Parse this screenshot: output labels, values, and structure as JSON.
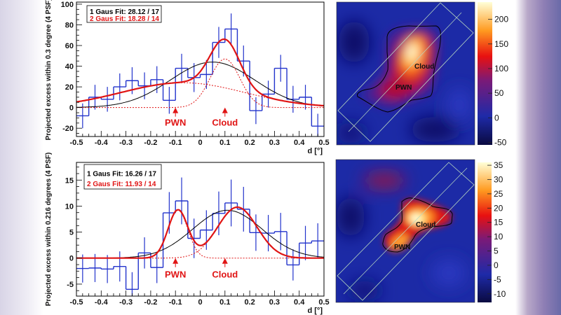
{
  "chart_data": [
    {
      "type": "bar",
      "subtype": "histogram-with-fits",
      "ylabel": "Projected excess within 0.3 degree (4 PSF)",
      "xlabel": "d [°]",
      "xlim": [
        -0.5,
        0.5
      ],
      "ylim": [
        -28,
        102
      ],
      "xticks": [
        -0.5,
        -0.4,
        -0.3,
        -0.2,
        -0.1,
        0,
        0.1,
        0.2,
        0.3,
        0.4,
        0.5
      ],
      "xtick_labels": [
        "-0.5",
        "-0.4",
        "-0.3",
        "-0.2",
        "-0.1",
        "0",
        "0.1",
        "0.2",
        "0.3",
        "0.4",
        "0.5"
      ],
      "yticks": [
        -20,
        0,
        20,
        40,
        60,
        80,
        100
      ],
      "ytick_labels": [
        "-20",
        "0",
        "20",
        "40",
        "60",
        "80",
        "100"
      ],
      "bin_width": 0.05,
      "bin_edges_start": -0.5,
      "values": [
        -8,
        10,
        8,
        20,
        26,
        21,
        27,
        7,
        38,
        29,
        32,
        63,
        76,
        45,
        -3,
        13,
        38,
        8,
        10,
        -18
      ],
      "errors": [
        12,
        12,
        12,
        13,
        13,
        13,
        13,
        13,
        14,
        14,
        14,
        15,
        15,
        15,
        13,
        13,
        13,
        13,
        12,
        12
      ],
      "legend": [
        "1 Gaus Fit: 28.12 / 17",
        "2 Gaus Fit: 18.28 / 14"
      ],
      "fits": {
        "one_gauss": [
          {
            "amplitude": 44,
            "mean": 0.05,
            "sigma": 0.17
          }
        ],
        "two_gauss": [
          {
            "amplitude": 24,
            "mean": -0.07,
            "sigma": 0.25
          },
          {
            "amplitude": 47,
            "mean": 0.1,
            "sigma": 0.06
          }
        ]
      },
      "annotations": [
        {
          "text": "PWN",
          "x": -0.1
        },
        {
          "text": "Cloud",
          "x": 0.1
        }
      ],
      "colors": {
        "histogram": "#2233cc",
        "one_gauss": "#000000",
        "two_gauss": "#e01414"
      }
    },
    {
      "type": "bar",
      "subtype": "histogram-with-fits",
      "ylabel": "Projected excess within 0.216 degrees (4 PSF)",
      "xlabel": "d [°]",
      "xlim": [
        -0.5,
        0.5
      ],
      "ylim": [
        -7.3,
        18.4
      ],
      "xticks": [
        -0.5,
        -0.4,
        -0.3,
        -0.2,
        -0.1,
        0,
        0.1,
        0.2,
        0.3,
        0.4,
        0.5
      ],
      "xtick_labels": [
        "-0.5",
        "-0.4",
        "-0.3",
        "-0.2",
        "-0.1",
        "0",
        "0.1",
        "0.2",
        "0.3",
        "0.4",
        "0.5"
      ],
      "yticks": [
        -5,
        0,
        5,
        10,
        15
      ],
      "ytick_labels": [
        "-5",
        "0",
        "5",
        "10",
        "15"
      ],
      "bin_width": 0.05,
      "bin_edges_start": -0.5,
      "values": [
        -2,
        -1.9,
        -2.1,
        -1.6,
        -6,
        1,
        -1.8,
        8.7,
        11,
        3.8,
        5.4,
        8.6,
        10.6,
        9.4,
        4.9,
        4.8,
        5.1,
        -1.3,
        2.9,
        3.3
      ],
      "errors": [
        2.7,
        2.7,
        2.7,
        2.9,
        3.3,
        3,
        3,
        4,
        4.5,
        3.8,
        3.8,
        4.2,
        4.5,
        4.3,
        3.5,
        3.5,
        3.6,
        3,
        3.3,
        3.4
      ],
      "legend": [
        "1 Gaus Fit: 16.26 / 17",
        "2 Gaus Fit: 11.93 / 14"
      ],
      "fits": {
        "one_gauss": [
          {
            "amplitude": 9.2,
            "mean": 0.11,
            "sigma": 0.14
          }
        ],
        "two_gauss": [
          {
            "amplitude": 9.2,
            "mean": -0.09,
            "sigma": 0.04
          },
          {
            "amplitude": 9.8,
            "mean": 0.15,
            "sigma": 0.08
          }
        ]
      },
      "annotations": [
        {
          "text": "PWN",
          "x": -0.1
        },
        {
          "text": "Cloud",
          "x": 0.1
        }
      ],
      "colors": {
        "histogram": "#2233cc",
        "one_gauss": "#000000",
        "two_gauss": "#e01414"
      }
    },
    {
      "type": "heatmap",
      "colorbar_ticks": [
        "200",
        "150",
        "100",
        "50",
        "0",
        "-50"
      ],
      "colorbar_range": [
        -55,
        235
      ],
      "labels": [
        "Cloud",
        "PWN"
      ],
      "colormap": [
        "#0a0a40",
        "#1e2aa8",
        "#8a1a6a",
        "#e81010",
        "#ffa020",
        "#ffffd0"
      ]
    },
    {
      "type": "heatmap",
      "colorbar_ticks": [
        "35",
        "30",
        "25",
        "20",
        "15",
        "10",
        "5",
        "0",
        "-5",
        "-10"
      ],
      "colorbar_range": [
        -13,
        36
      ],
      "labels": [
        "Cloud",
        "PWN"
      ],
      "colormap": [
        "#0a0a40",
        "#1e2aa8",
        "#8a1a6a",
        "#e81010",
        "#ffa020",
        "#ffffd0"
      ]
    }
  ]
}
